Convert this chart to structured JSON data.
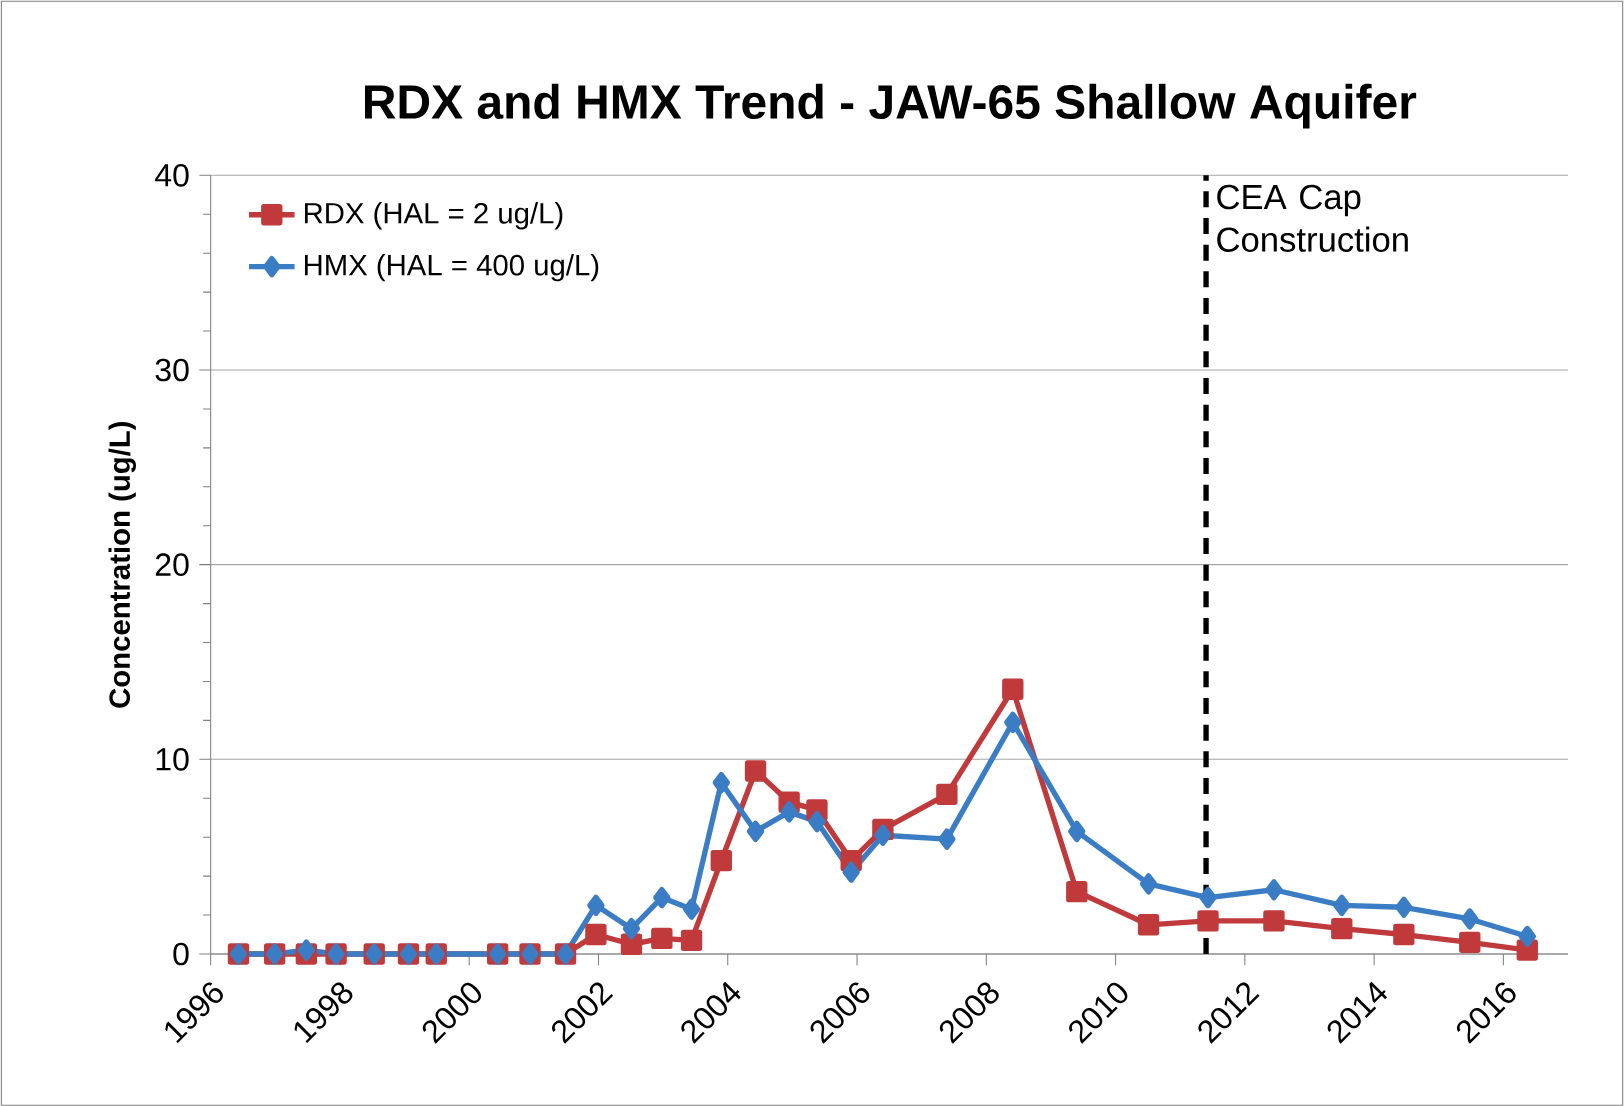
{
  "chart_data": {
    "type": "line",
    "title": "RDX and HMX Trend - JAW-65 Shallow Aquifer",
    "ylabel": "Concentration (ug/L)",
    "xlim": [
      1996,
      2017
    ],
    "xticks": [
      1996,
      1998,
      2000,
      2002,
      2004,
      2006,
      2008,
      2010,
      2012,
      2014,
      2016
    ],
    "ylim": [
      0,
      40
    ],
    "yticks": [
      0,
      10,
      20,
      30,
      40
    ],
    "grid": "y",
    "legend": "top left",
    "x": [
      1996.43,
      1996.99,
      1997.48,
      1997.94,
      1998.53,
      1999.06,
      1999.49,
      2000.44,
      2000.94,
      2001.49,
      2001.96,
      2002.51,
      2002.98,
      2003.44,
      2003.9,
      2004.43,
      2004.95,
      2005.38,
      2005.91,
      2006.4,
      2007.39,
      2008.41,
      2009.4,
      2010.51,
      2011.43,
      2012.45,
      2013.5,
      2014.46,
      2015.48,
      2016.37
    ],
    "series": [
      {
        "name": "RDX (HAL = 2 ug/L)",
        "color": "#c0393b",
        "marker": "square",
        "values": [
          0,
          0,
          0,
          0,
          0,
          0,
          0,
          0,
          0,
          0,
          1.0,
          0.5,
          0.8,
          0.7,
          4.8,
          9.4,
          7.8,
          7.4,
          4.8,
          6.4,
          8.2,
          13.6,
          3.2,
          1.5,
          1.7,
          1.7,
          1.3,
          1.0,
          0.6,
          0.2
        ]
      },
      {
        "name": "HMX (HAL = 400 ug/L)",
        "color": "#3b7dc4",
        "marker": "diamond",
        "values": [
          0,
          0,
          0.2,
          0,
          0,
          0,
          0,
          0,
          0,
          0,
          2.5,
          1.3,
          2.9,
          2.3,
          8.8,
          6.3,
          7.3,
          6.8,
          4.2,
          6.1,
          5.9,
          11.9,
          6.3,
          3.6,
          2.9,
          3.3,
          2.5,
          2.4,
          1.8,
          0.9
        ]
      }
    ],
    "ref_lines": [
      {
        "axis": "x",
        "value": 2011.4,
        "label": "CEA Cap Construction",
        "color": "#000000",
        "line_style": "dashed"
      }
    ]
  }
}
